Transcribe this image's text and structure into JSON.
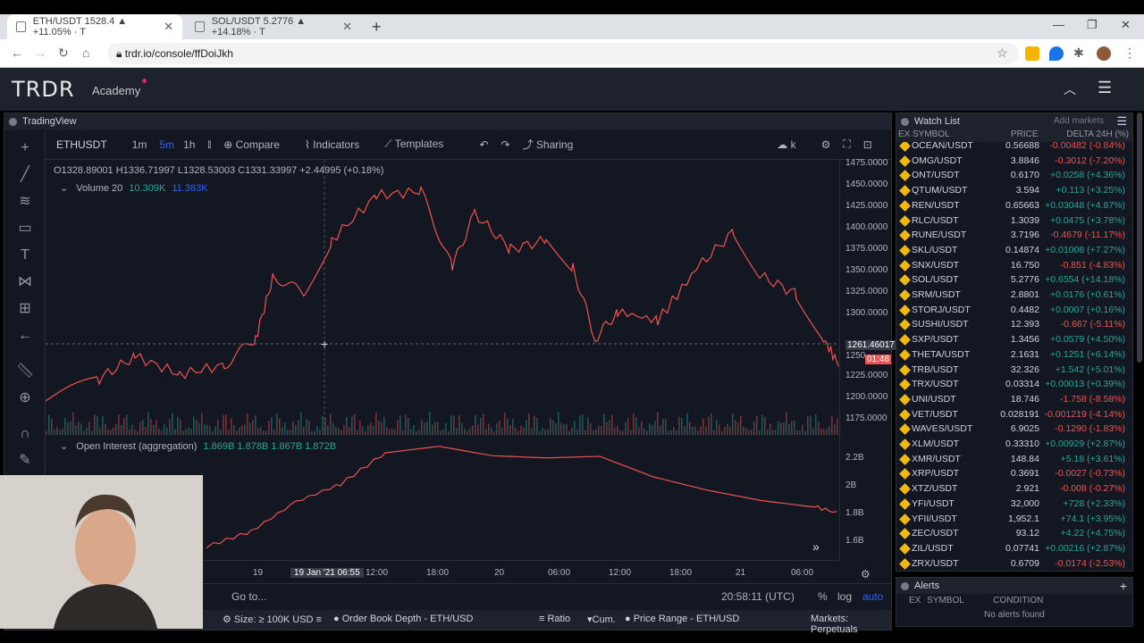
{
  "browser": {
    "tabs": [
      {
        "title": "ETH/USDT 1528.4 ▲ +11.05% · T"
      },
      {
        "title": "SOL/USDT 5.2776 ▲ +14.18% · T"
      }
    ],
    "url": "trdr.io/console/ffDoiJkh"
  },
  "app": {
    "logo": "TRDR",
    "nav_academy": "Academy"
  },
  "tradingview": {
    "panel_title": "TradingView",
    "symbol": "ETHUSDT",
    "intervals": [
      "1m",
      "5m",
      "1h"
    ],
    "toolbar": {
      "compare": "Compare",
      "indicators": "Indicators",
      "templates": "Templates",
      "sharing": "Sharing",
      "k": "k"
    },
    "ohlc": "O1328.89001 H1336.71997 L1328.53003 C1331.33997 +2.44995 (+0.18%)",
    "volume_label": "Volume 20",
    "volume_v1": "10.309K",
    "volume_v2": "11.383K",
    "price_ticks": [
      "1475.0000",
      "1450.0000",
      "1425.0000",
      "1400.0000",
      "1375.0000",
      "1350.0000",
      "1325.0000",
      "1300.0000",
      "1250",
      "1225.0000",
      "1200.0000",
      "1175.0000"
    ],
    "crosshair_price": "1261.46017",
    "countdown": "01:48",
    "oi_label": "Open Interest (aggregation)",
    "oi_values": "1.869B 1.878B 1.867B 1.872B",
    "oi_ticks": [
      "2.2B",
      "2B",
      "1.8B",
      "1.6B"
    ],
    "time_ticks": [
      "19",
      "19 Jan '21",
      "06:55",
      "12:00",
      "18:00",
      "20",
      "06:00",
      "12:00",
      "18:00",
      "21",
      "06:00"
    ],
    "goto": "Go to...",
    "clock": "20:58:11 (UTC)",
    "pct": "%",
    "log": "log",
    "auto": "auto",
    "footer": {
      "size": "Size: ≥ 100K USD",
      "orderbook": "Order Book Depth - ETH/USD",
      "ratio": "Ratio",
      "cum": "Cum.",
      "price_range": "Price Range - ETH/USD",
      "markets": "Markets: Perpetuals"
    }
  },
  "watchlist": {
    "title": "Watch List",
    "add_markets": "Add markets",
    "cols": {
      "ex": "EX",
      "symbol": "SYMBOL",
      "price": "PRICE",
      "delta": "DELTA 24H (%)"
    },
    "rows": [
      {
        "sym": "OCEAN/USDT",
        "price": "0.56688",
        "delta": "-0.00482 (-0.84%)",
        "dir": "down"
      },
      {
        "sym": "OMG/USDT",
        "price": "3.8846",
        "delta": "-0.3012 (-7.20%)",
        "dir": "down"
      },
      {
        "sym": "ONT/USDT",
        "price": "0.6170",
        "delta": "+0.0258 (+4.36%)",
        "dir": "up"
      },
      {
        "sym": "QTUM/USDT",
        "price": "3.594",
        "delta": "+0.113 (+3.25%)",
        "dir": "up"
      },
      {
        "sym": "REN/USDT",
        "price": "0.65663",
        "delta": "+0.03048 (+4.87%)",
        "dir": "up"
      },
      {
        "sym": "RLC/USDT",
        "price": "1.3039",
        "delta": "+0.0475 (+3.78%)",
        "dir": "up"
      },
      {
        "sym": "RUNE/USDT",
        "price": "3.7196",
        "delta": "-0.4679 (-11.17%)",
        "dir": "down"
      },
      {
        "sym": "SKL/USDT",
        "price": "0.14874",
        "delta": "+0.01008 (+7.27%)",
        "dir": "up"
      },
      {
        "sym": "SNX/USDT",
        "price": "16.750",
        "delta": "-0.851 (-4.83%)",
        "dir": "down"
      },
      {
        "sym": "SOL/USDT",
        "price": "5.2776",
        "delta": "+0.6554 (+14.18%)",
        "dir": "up"
      },
      {
        "sym": "SRM/USDT",
        "price": "2.8801",
        "delta": "+0.0176 (+0.61%)",
        "dir": "up"
      },
      {
        "sym": "STORJ/USDT",
        "price": "0.4482",
        "delta": "+0.0007 (+0.16%)",
        "dir": "up"
      },
      {
        "sym": "SUSHI/USDT",
        "price": "12.393",
        "delta": "-0.667 (-5.11%)",
        "dir": "down"
      },
      {
        "sym": "SXP/USDT",
        "price": "1.3456",
        "delta": "+0.0579 (+4.50%)",
        "dir": "up"
      },
      {
        "sym": "THETA/USDT",
        "price": "2.1631",
        "delta": "+0.1251 (+6.14%)",
        "dir": "up"
      },
      {
        "sym": "TRB/USDT",
        "price": "32.326",
        "delta": "+1.542 (+5.01%)",
        "dir": "up"
      },
      {
        "sym": "TRX/USDT",
        "price": "0.03314",
        "delta": "+0.00013 (+0.39%)",
        "dir": "up"
      },
      {
        "sym": "UNI/USDT",
        "price": "18.746",
        "delta": "-1.758 (-8.58%)",
        "dir": "down"
      },
      {
        "sym": "VET/USDT",
        "price": "0.028191",
        "delta": "-0.001219 (-4.14%)",
        "dir": "down"
      },
      {
        "sym": "WAVES/USDT",
        "price": "6.9025",
        "delta": "-0.1290 (-1.83%)",
        "dir": "down"
      },
      {
        "sym": "XLM/USDT",
        "price": "0.33310",
        "delta": "+0.00929 (+2.87%)",
        "dir": "up"
      },
      {
        "sym": "XMR/USDT",
        "price": "148.84",
        "delta": "+5.18 (+3.61%)",
        "dir": "up"
      },
      {
        "sym": "XRP/USDT",
        "price": "0.3691",
        "delta": "-0.0027 (-0.73%)",
        "dir": "down"
      },
      {
        "sym": "XTZ/USDT",
        "price": "2.921",
        "delta": "-0.008 (-0.27%)",
        "dir": "down"
      },
      {
        "sym": "YFI/USDT",
        "price": "32,000",
        "delta": "+728 (+2.33%)",
        "dir": "up"
      },
      {
        "sym": "YFII/USDT",
        "price": "1,952.1",
        "delta": "+74.1 (+3.95%)",
        "dir": "up"
      },
      {
        "sym": "ZEC/USDT",
        "price": "93.12",
        "delta": "+4.22 (+4.75%)",
        "dir": "up"
      },
      {
        "sym": "ZIL/USDT",
        "price": "0.07741",
        "delta": "+0.00216 (+2.87%)",
        "dir": "up"
      },
      {
        "sym": "ZRX/USDT",
        "price": "0.6709",
        "delta": "-0.0174 (-2.53%)",
        "dir": "down"
      }
    ]
  },
  "alerts": {
    "title": "Alerts",
    "col_ex": "EX",
    "col_symbol": "SYMBOL",
    "col_condition": "CONDITION",
    "empty": "No alerts found"
  },
  "colors": {
    "up": "#26a69a",
    "down": "#ef5350",
    "bg": "#131722",
    "accent": "#2962ff"
  }
}
